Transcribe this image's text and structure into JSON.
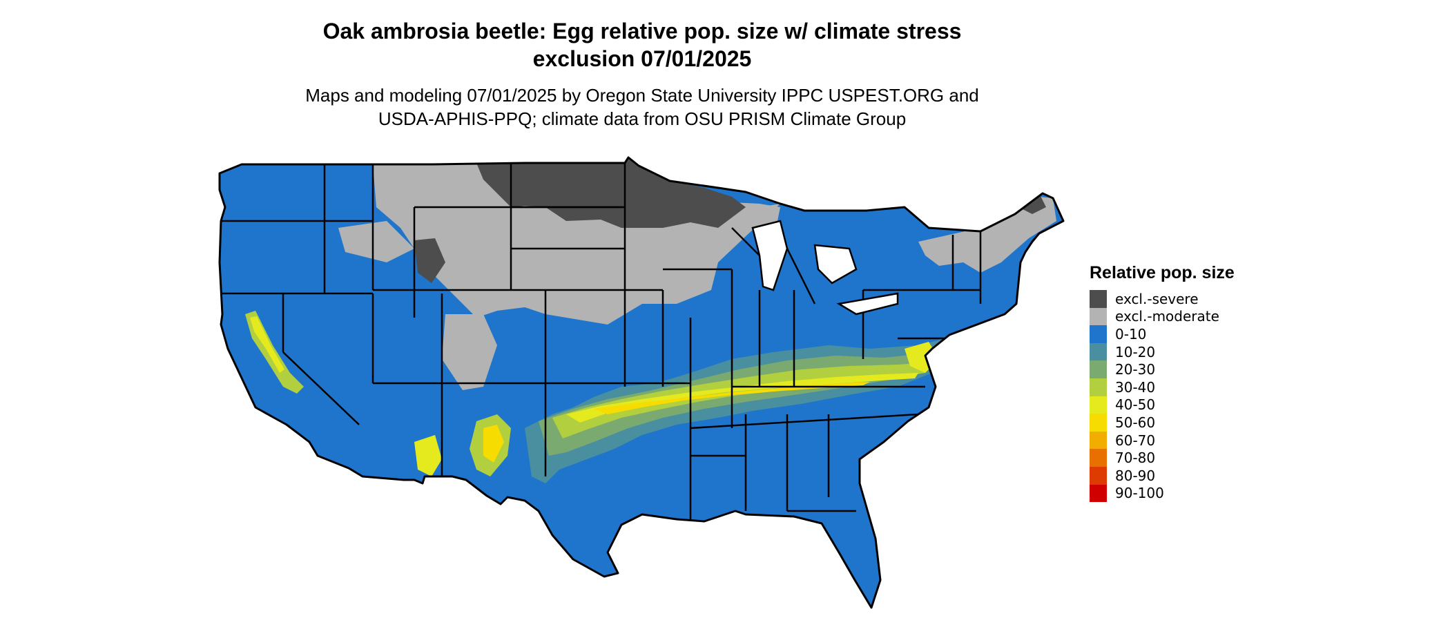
{
  "title": {
    "line1": "Oak ambrosia beetle: Egg relative pop. size w/ climate stress",
    "line2": "exclusion 07/01/2025"
  },
  "subtitle": {
    "line1": "Maps and modeling 07/01/2025 by Oregon State University IPPC USPEST.ORG and",
    "line2": "USDA-APHIS-PPQ; climate data from OSU PRISM Climate Group"
  },
  "legend": {
    "title": "Relative pop. size",
    "items": [
      {
        "label": "excl.-severe",
        "color": "#4d4d4d"
      },
      {
        "label": "excl.-moderate",
        "color": "#b3b3b3"
      },
      {
        "label": "0-10",
        "color": "#1f75cc"
      },
      {
        "label": "10-20",
        "color": "#4a8fa0"
      },
      {
        "label": "20-30",
        "color": "#7aaa70"
      },
      {
        "label": "30-40",
        "color": "#b1cf3e"
      },
      {
        "label": "40-50",
        "color": "#e4ea1e"
      },
      {
        "label": "50-60",
        "color": "#f6dc00"
      },
      {
        "label": "60-70",
        "color": "#f1ae00"
      },
      {
        "label": "70-80",
        "color": "#e77000"
      },
      {
        "label": "80-90",
        "color": "#dd3b00"
      },
      {
        "label": "90-100",
        "color": "#d10000"
      }
    ]
  }
}
